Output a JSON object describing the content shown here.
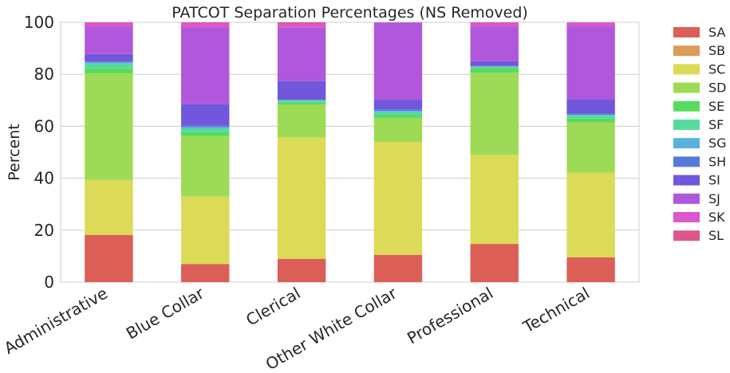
{
  "chart_data": {
    "type": "bar",
    "stacked": true,
    "title": "PATCOT Separation Percentages (NS Removed)",
    "xlabel": "",
    "ylabel": "Percent",
    "ylim": [
      0,
      100
    ],
    "yticks": [
      0,
      20,
      40,
      60,
      80,
      100
    ],
    "grid": true,
    "legend_position": "right",
    "categories": [
      "Administrative",
      "Blue Collar",
      "Clerical",
      "Other White Collar",
      "Professional",
      "Technical"
    ],
    "series": [
      {
        "name": "SA",
        "color": "#db5f57",
        "values": [
          18.2,
          7.0,
          9.0,
          10.5,
          14.7,
          9.5
        ]
      },
      {
        "name": "SB",
        "color": "#db9d57",
        "values": [
          0.0,
          0.0,
          0.0,
          0.0,
          0.0,
          0.0
        ]
      },
      {
        "name": "SC",
        "color": "#dbdb57",
        "values": [
          21.1,
          26.0,
          46.7,
          43.5,
          34.3,
          32.7
        ]
      },
      {
        "name": "SD",
        "color": "#9ddb57",
        "values": [
          41.0,
          23.2,
          12.7,
          9.2,
          31.6,
          19.3
        ]
      },
      {
        "name": "SE",
        "color": "#57db5f",
        "values": [
          2.0,
          1.5,
          0.6,
          1.2,
          1.6,
          1.6
        ]
      },
      {
        "name": "SF",
        "color": "#57db9d",
        "values": [
          1.8,
          1.5,
          0.9,
          1.0,
          0.7,
          1.1
        ]
      },
      {
        "name": "SG",
        "color": "#57b3db",
        "values": [
          0.5,
          0.5,
          0.2,
          0.5,
          0.1,
          0.2
        ]
      },
      {
        "name": "SH",
        "color": "#5779db",
        "values": [
          0.4,
          0.5,
          0.1,
          0.6,
          0.2,
          0.5
        ]
      },
      {
        "name": "SI",
        "color": "#7157db",
        "values": [
          2.8,
          8.3,
          7.2,
          3.6,
          1.8,
          5.6
        ]
      },
      {
        "name": "SJ",
        "color": "#b157db",
        "values": [
          10.5,
          29.5,
          20.5,
          29.8,
          13.3,
          28.1
        ]
      },
      {
        "name": "SK",
        "color": "#db57cf",
        "values": [
          1.4,
          1.7,
          1.5,
          0.1,
          1.4,
          1.3
        ]
      },
      {
        "name": "SL",
        "color": "#db5789",
        "values": [
          0.3,
          0.3,
          0.6,
          0.0,
          0.3,
          0.1
        ]
      }
    ]
  }
}
